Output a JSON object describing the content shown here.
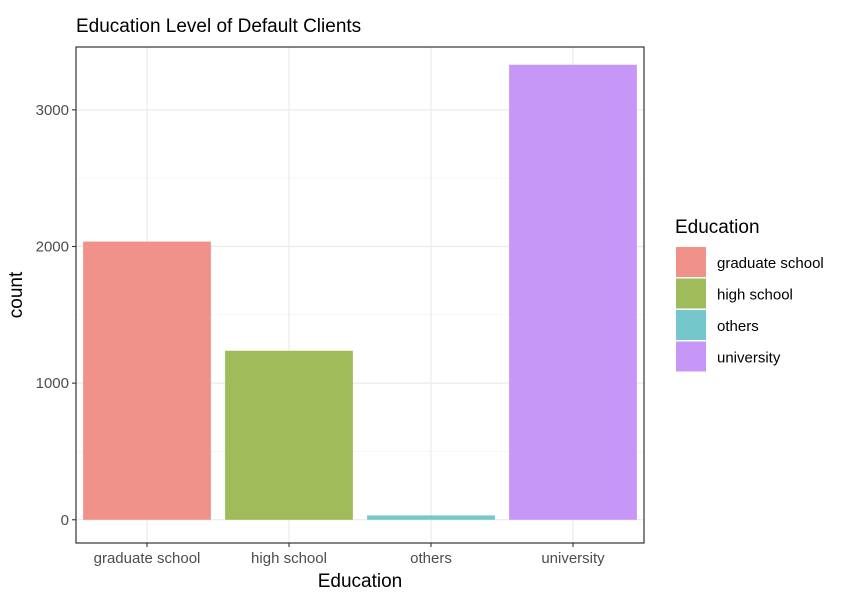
{
  "chart_data": {
    "type": "bar",
    "title": "Education Level of Default Clients",
    "xlabel": "Education",
    "ylabel": "count",
    "categories": [
      "graduate school",
      "high school",
      "others",
      "university"
    ],
    "values": [
      2036,
      1237,
      32,
      3330
    ],
    "colors": [
      "#F0928A",
      "#9FBB5A",
      "#74C8CC",
      "#C797F8"
    ],
    "ylim": [
      -170,
      3460
    ],
    "yticks": [
      0,
      1000,
      2000,
      3000
    ],
    "yticks_minor": [
      500,
      1500,
      2500
    ],
    "grid": true,
    "legend": {
      "title": "Education",
      "position": "right",
      "items": [
        "graduate school",
        "high school",
        "others",
        "university"
      ]
    }
  }
}
